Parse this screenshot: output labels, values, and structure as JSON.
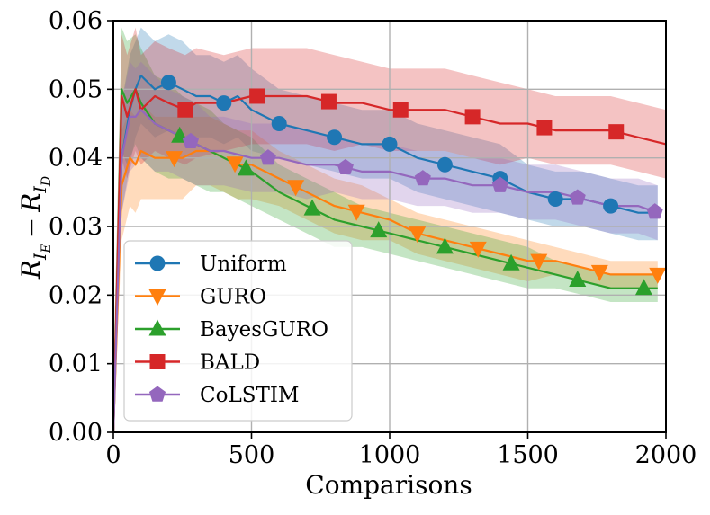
{
  "chart_data": {
    "type": "line",
    "title": "",
    "xlabel": "Comparisons",
    "ylabel": "R_{I_E} − R_{I_D}",
    "ylabel_parts": {
      "base1": "R",
      "sub1": "I",
      "subsub1": "E",
      "minus": "−",
      "base2": "R",
      "sub2": "I",
      "subsub2": "D"
    },
    "xlim": [
      0,
      2000
    ],
    "ylim": [
      0,
      0.06
    ],
    "xticks": [
      0,
      500,
      1000,
      1500,
      2000
    ],
    "yticks": [
      0.0,
      0.01,
      0.02,
      0.03,
      0.04,
      0.05,
      0.06
    ],
    "xtick_labels": [
      "0",
      "500",
      "1000",
      "1500",
      "2000"
    ],
    "ytick_labels": [
      "0.00",
      "0.01",
      "0.02",
      "0.03",
      "0.04",
      "0.05",
      "0.06"
    ],
    "grid": true,
    "legend_position": "lower-left",
    "series": [
      {
        "name": "Uniform",
        "color": "#1f77b4",
        "marker": "circle",
        "x": [
          0,
          30,
          60,
          80,
          100,
          150,
          200,
          250,
          300,
          350,
          400,
          450,
          500,
          600,
          700,
          800,
          900,
          1000,
          1100,
          1200,
          1300,
          1400,
          1500,
          1600,
          1700,
          1800,
          1900,
          1970
        ],
        "y": [
          0.0,
          0.04,
          0.047,
          0.05,
          0.052,
          0.05,
          0.051,
          0.05,
          0.049,
          0.049,
          0.048,
          0.049,
          0.047,
          0.045,
          0.044,
          0.043,
          0.042,
          0.042,
          0.04,
          0.039,
          0.038,
          0.037,
          0.035,
          0.034,
          0.034,
          0.033,
          0.032,
          0.032
        ],
        "band": [
          0.007,
          0.008,
          0.008,
          0.007,
          0.007,
          0.007,
          0.007,
          0.007,
          0.006,
          0.006,
          0.006,
          0.006,
          0.006,
          0.005,
          0.005,
          0.005,
          0.005,
          0.005,
          0.005,
          0.005,
          0.005,
          0.005,
          0.004,
          0.004,
          0.004,
          0.004,
          0.004,
          0.004
        ],
        "marker_x": [
          200,
          400,
          600,
          800,
          1000,
          1200,
          1400,
          1600,
          1800
        ]
      },
      {
        "name": "GURO",
        "color": "#ff7f0e",
        "marker": "triangle-down",
        "x": [
          0,
          30,
          60,
          80,
          100,
          150,
          200,
          250,
          300,
          350,
          400,
          450,
          500,
          600,
          700,
          800,
          900,
          1000,
          1100,
          1200,
          1300,
          1400,
          1500,
          1600,
          1700,
          1800,
          1900,
          1970
        ],
        "y": [
          0.0,
          0.036,
          0.04,
          0.039,
          0.041,
          0.04,
          0.04,
          0.04,
          0.041,
          0.041,
          0.04,
          0.039,
          0.039,
          0.037,
          0.035,
          0.033,
          0.032,
          0.031,
          0.029,
          0.028,
          0.027,
          0.026,
          0.025,
          0.025,
          0.024,
          0.023,
          0.023,
          0.023
        ],
        "band": [
          0.007,
          0.008,
          0.007,
          0.007,
          0.007,
          0.006,
          0.006,
          0.006,
          0.005,
          0.005,
          0.005,
          0.005,
          0.005,
          0.004,
          0.004,
          0.004,
          0.004,
          0.003,
          0.003,
          0.003,
          0.003,
          0.003,
          0.003,
          0.002,
          0.002,
          0.002,
          0.002,
          0.002
        ],
        "marker_x": [
          220,
          440,
          660,
          880,
          1100,
          1320,
          1540,
          1760,
          1970
        ]
      },
      {
        "name": "BayesGURO",
        "color": "#2ca02c",
        "marker": "triangle-up",
        "x": [
          0,
          30,
          50,
          80,
          100,
          150,
          200,
          250,
          300,
          350,
          400,
          450,
          500,
          600,
          700,
          800,
          900,
          1000,
          1100,
          1200,
          1300,
          1400,
          1500,
          1600,
          1700,
          1800,
          1900,
          1970
        ],
        "y": [
          0.0,
          0.05,
          0.048,
          0.05,
          0.048,
          0.045,
          0.044,
          0.043,
          0.042,
          0.041,
          0.04,
          0.039,
          0.038,
          0.035,
          0.033,
          0.031,
          0.03,
          0.029,
          0.028,
          0.027,
          0.026,
          0.025,
          0.024,
          0.023,
          0.022,
          0.021,
          0.021,
          0.021
        ],
        "band": [
          0.008,
          0.009,
          0.009,
          0.008,
          0.008,
          0.007,
          0.007,
          0.006,
          0.006,
          0.006,
          0.005,
          0.005,
          0.005,
          0.004,
          0.004,
          0.004,
          0.003,
          0.003,
          0.003,
          0.003,
          0.003,
          0.003,
          0.003,
          0.002,
          0.002,
          0.002,
          0.002,
          0.002
        ],
        "marker_x": [
          240,
          480,
          720,
          960,
          1200,
          1440,
          1680,
          1920
        ]
      },
      {
        "name": "BALD",
        "color": "#d62728",
        "marker": "square",
        "x": [
          0,
          30,
          50,
          80,
          100,
          150,
          200,
          260,
          300,
          400,
          500,
          600,
          700,
          800,
          900,
          1000,
          1100,
          1200,
          1300,
          1400,
          1500,
          1600,
          1700,
          1800,
          1900,
          2000
        ],
        "y": [
          0.0,
          0.049,
          0.046,
          0.05,
          0.047,
          0.049,
          0.048,
          0.047,
          0.048,
          0.048,
          0.049,
          0.049,
          0.049,
          0.048,
          0.048,
          0.047,
          0.047,
          0.047,
          0.046,
          0.045,
          0.045,
          0.044,
          0.044,
          0.044,
          0.043,
          0.042
        ],
        "band": [
          0.008,
          0.009,
          0.009,
          0.009,
          0.008,
          0.008,
          0.008,
          0.008,
          0.008,
          0.007,
          0.007,
          0.007,
          0.007,
          0.007,
          0.006,
          0.006,
          0.006,
          0.006,
          0.006,
          0.006,
          0.005,
          0.005,
          0.005,
          0.005,
          0.005,
          0.005
        ],
        "marker_x": [
          260,
          520,
          780,
          1040,
          1300,
          1560,
          1820
        ]
      },
      {
        "name": "CoLSTIM",
        "color": "#9467bd",
        "marker": "pentagon",
        "x": [
          0,
          30,
          60,
          80,
          100,
          150,
          200,
          250,
          300,
          350,
          400,
          500,
          600,
          700,
          800,
          900,
          1000,
          1100,
          1200,
          1300,
          1400,
          1500,
          1600,
          1700,
          1800,
          1900,
          1970
        ],
        "y": [
          0.0,
          0.04,
          0.046,
          0.046,
          0.047,
          0.045,
          0.044,
          0.043,
          0.042,
          0.041,
          0.041,
          0.04,
          0.04,
          0.039,
          0.039,
          0.038,
          0.038,
          0.037,
          0.037,
          0.036,
          0.036,
          0.035,
          0.035,
          0.034,
          0.033,
          0.033,
          0.032
        ],
        "band": [
          0.007,
          0.008,
          0.008,
          0.007,
          0.007,
          0.007,
          0.006,
          0.006,
          0.006,
          0.005,
          0.005,
          0.005,
          0.005,
          0.005,
          0.004,
          0.004,
          0.004,
          0.004,
          0.004,
          0.004,
          0.004,
          0.004,
          0.004,
          0.004,
          0.004,
          0.004,
          0.004
        ],
        "marker_x": [
          280,
          560,
          840,
          1120,
          1400,
          1680,
          1960
        ]
      }
    ]
  }
}
